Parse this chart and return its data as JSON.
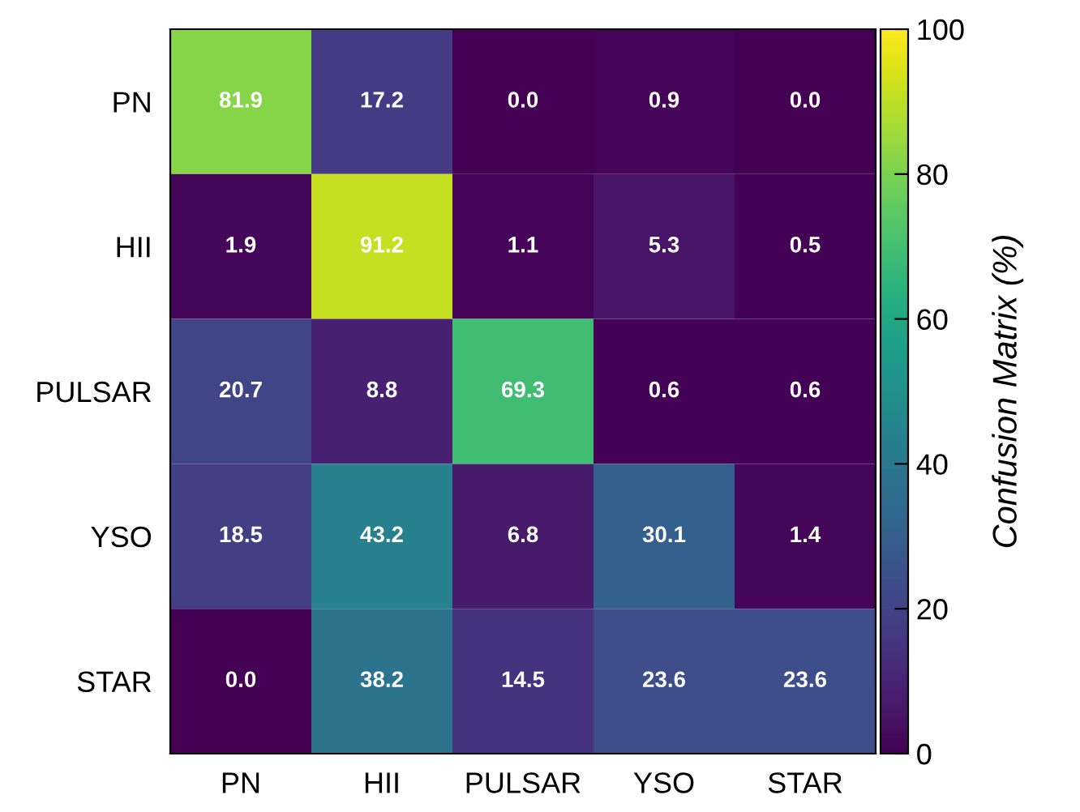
{
  "chart_data": {
    "type": "heatmap",
    "categories": [
      "PN",
      "HII",
      "PULSAR",
      "YSO",
      "STAR"
    ],
    "y_categories": [
      "PN",
      "HII",
      "PULSAR",
      "YSO",
      "STAR"
    ],
    "cells": [
      [
        81.9,
        17.2,
        0.0,
        0.9,
        0.0
      ],
      [
        1.9,
        91.2,
        1.1,
        5.3,
        0.5
      ],
      [
        20.7,
        8.8,
        69.3,
        0.6,
        0.6
      ],
      [
        18.5,
        43.2,
        6.8,
        30.1,
        1.4
      ],
      [
        0.0,
        38.2,
        14.5,
        23.6,
        23.6
      ]
    ],
    "cell_labels": [
      [
        "81.9",
        "17.2",
        "0.0",
        "0.9",
        "0.0"
      ],
      [
        "1.9",
        "91.2",
        "1.1",
        "5.3",
        "0.5"
      ],
      [
        "20.7",
        "8.8",
        "69.3",
        "0.6",
        "0.6"
      ],
      [
        "18.5",
        "43.2",
        "6.8",
        "30.1",
        "1.4"
      ],
      [
        "0.0",
        "38.2",
        "14.5",
        "23.6",
        "23.6"
      ]
    ],
    "data_labels": true,
    "clabel": "Confusion Matrix (%)",
    "clim": [
      0,
      100
    ],
    "cticks": [
      0,
      20,
      40,
      60,
      80,
      100
    ]
  }
}
